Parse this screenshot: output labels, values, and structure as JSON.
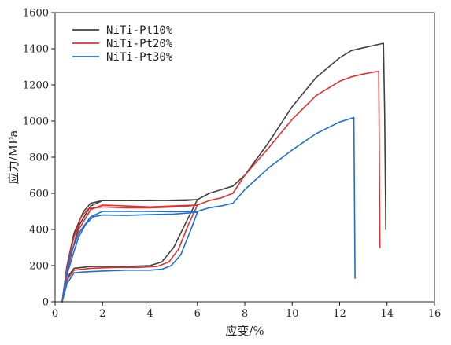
{
  "chart_data": {
    "type": "line",
    "xlabel": "应变/%",
    "ylabel": "应力/MPa",
    "xlim": [
      0,
      16
    ],
    "ylim": [
      0,
      1600
    ],
    "xticks": [
      0,
      2,
      4,
      6,
      8,
      10,
      12,
      14,
      16
    ],
    "yticks": [
      0,
      200,
      400,
      600,
      800,
      1000,
      1200,
      1400,
      1600
    ],
    "grid": false,
    "legend_position": "top-left",
    "series": [
      {
        "name": "NiTi-Pt10%",
        "color": "#404040",
        "segments": [
          {
            "x": [
              0.3,
              0.5,
              0.8,
              1.2,
              1.5,
              2.0,
              3.0,
              4.0,
              5.0,
              5.5,
              6.0
            ],
            "y": [
              0,
              200,
              380,
              500,
              545,
              560,
              560,
              562,
              560,
              560,
              565
            ]
          },
          {
            "x": [
              6.0,
              5.6,
              5.0,
              4.5,
              4.0,
              3.0,
              2.0,
              1.5,
              0.8,
              0.6,
              0.4,
              0.3
            ],
            "y": [
              565,
              460,
              300,
              220,
              200,
              195,
              195,
              195,
              185,
              150,
              80,
              0
            ]
          },
          {
            "x": [
              0.3,
              0.6,
              1.0,
              1.5,
              2.0,
              3.0,
              4.0,
              5.0,
              6.0
            ],
            "y": [
              0,
              220,
              420,
              530,
              560,
              560,
              560,
              562,
              565
            ]
          },
          {
            "x": [
              6.0,
              6.5,
              7.0,
              7.5,
              8.0,
              9.0,
              10.0,
              11.0,
              12.0,
              12.5,
              13.0,
              13.5,
              13.85,
              13.9,
              13.95
            ],
            "y": [
              565,
              600,
              620,
              640,
              700,
              880,
              1080,
              1240,
              1350,
              1390,
              1405,
              1420,
              1430,
              1050,
              400
            ]
          }
        ]
      },
      {
        "name": "NiTi-Pt20%",
        "color": "#e03030",
        "segments": [
          {
            "x": [
              0.3,
              0.5,
              0.8,
              1.1,
              1.4,
              2.0,
              3.0,
              4.0,
              5.0,
              5.6,
              6.0
            ],
            "y": [
              0,
              200,
              360,
              470,
              515,
              525,
              520,
              520,
              525,
              530,
              535
            ]
          },
          {
            "x": [
              6.0,
              5.6,
              5.2,
              4.8,
              4.3,
              3.5,
              2.5,
              1.5,
              0.8,
              0.5,
              0.3
            ],
            "y": [
              535,
              420,
              290,
              220,
              195,
              190,
              190,
              185,
              175,
              120,
              0
            ]
          },
          {
            "x": [
              0.3,
              0.6,
              1.0,
              1.5,
              2.0,
              3.0,
              4.0,
              5.0,
              6.0
            ],
            "y": [
              0,
              230,
              400,
              510,
              535,
              530,
              525,
              530,
              535
            ]
          },
          {
            "x": [
              6.0,
              6.5,
              7.0,
              7.5,
              8.0,
              9.0,
              10.0,
              11.0,
              12.0,
              12.5,
              13.0,
              13.5,
              13.65,
              13.7
            ],
            "y": [
              535,
              560,
              575,
              600,
              700,
              850,
              1010,
              1140,
              1220,
              1245,
              1260,
              1272,
              1275,
              300
            ]
          }
        ]
      },
      {
        "name": "NiTi-Pt30%",
        "color": "#1f6fd0",
        "segments": [
          {
            "x": [
              0.3,
              0.5,
              0.8,
              1.0,
              1.3,
              1.6,
              2.0,
              3.0,
              4.0,
              5.0,
              6.0
            ],
            "y": [
              0,
              150,
              280,
              360,
              430,
              470,
              480,
              478,
              482,
              485,
              495
            ]
          },
          {
            "x": [
              6.0,
              5.7,
              5.3,
              4.9,
              4.5,
              4.0,
              3.0,
              2.0,
              1.2,
              0.8,
              0.5,
              0.3
            ],
            "y": [
              495,
              390,
              260,
              200,
              180,
              175,
              175,
              170,
              165,
              160,
              100,
              0
            ]
          },
          {
            "x": [
              0.3,
              0.6,
              1.0,
              1.5,
              2.0,
              3.0,
              4.0,
              5.0,
              6.0
            ],
            "y": [
              0,
              250,
              380,
              470,
              500,
              500,
              500,
              498,
              500
            ]
          },
          {
            "x": [
              6.0,
              6.5,
              7.0,
              7.5,
              8.0,
              9.0,
              10.0,
              11.0,
              12.0,
              12.5,
              12.6,
              12.65
            ],
            "y": [
              500,
              520,
              530,
              545,
              620,
              740,
              840,
              930,
              995,
              1015,
              1020,
              130
            ]
          }
        ]
      }
    ]
  }
}
